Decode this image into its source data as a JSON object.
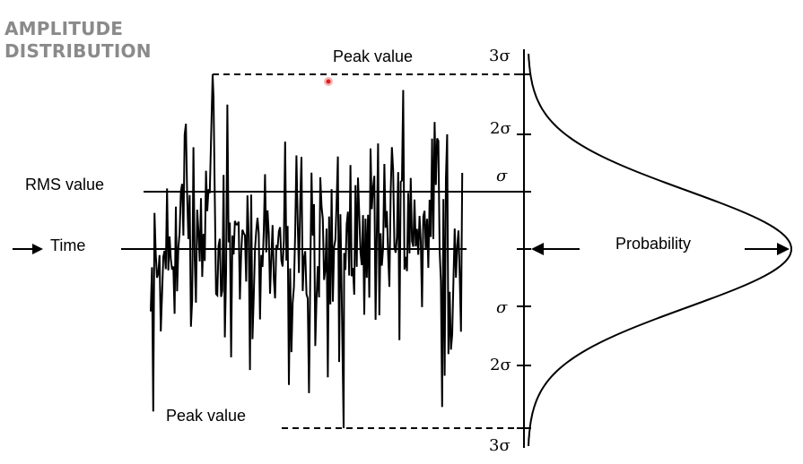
{
  "slide": {
    "title_line1": "AMPLITUDE",
    "title_line2": "DISTRIBUTION"
  },
  "labels": {
    "peak_top": "Peak value",
    "peak_bottom": "Peak value",
    "rms": "RMS value",
    "time": "Time",
    "probability": "Probability"
  },
  "sigma_labels": {
    "plus_3": "3σ",
    "plus_2": "2σ",
    "plus_1": "σ",
    "minus_1": "σ",
    "minus_2": "2σ",
    "minus_3": "3σ"
  },
  "colors": {
    "title": "#8a8a8a",
    "ink": "#000000",
    "cursor_dot": "#e02020"
  }
}
